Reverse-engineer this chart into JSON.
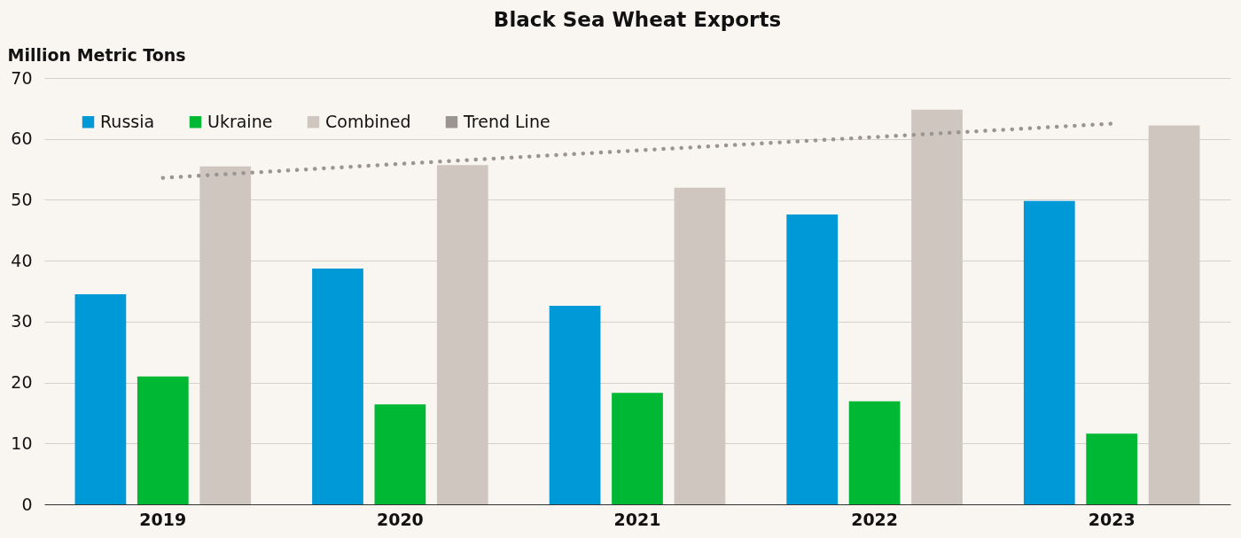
{
  "chart_data": {
    "type": "bar",
    "title": "Black Sea Wheat Exports",
    "ylabel": "Million Metric Tons",
    "categories": [
      "2019",
      "2020",
      "2021",
      "2022",
      "2023"
    ],
    "series": [
      {
        "name": "Russia",
        "color": "#0099d8",
        "values": [
          34.5,
          38.7,
          32.6,
          47.6,
          49.8
        ]
      },
      {
        "name": "Ukraine",
        "color": "#00b833",
        "values": [
          21.0,
          16.4,
          18.3,
          16.9,
          11.6
        ]
      },
      {
        "name": "Combined",
        "color": "#cfc6c0",
        "values": [
          55.5,
          55.7,
          52.0,
          64.8,
          62.2
        ]
      },
      {
        "name": "Trend Line",
        "color": "#9a9590",
        "type": "line",
        "line_style": "dotted",
        "values": [
          53.6,
          55.9,
          58.1,
          60.3,
          62.5
        ]
      }
    ],
    "ylim": [
      0,
      70
    ],
    "yticks": [
      0,
      10,
      20,
      30,
      40,
      50,
      60,
      70
    ],
    "grid": "y",
    "legend": "top left"
  }
}
